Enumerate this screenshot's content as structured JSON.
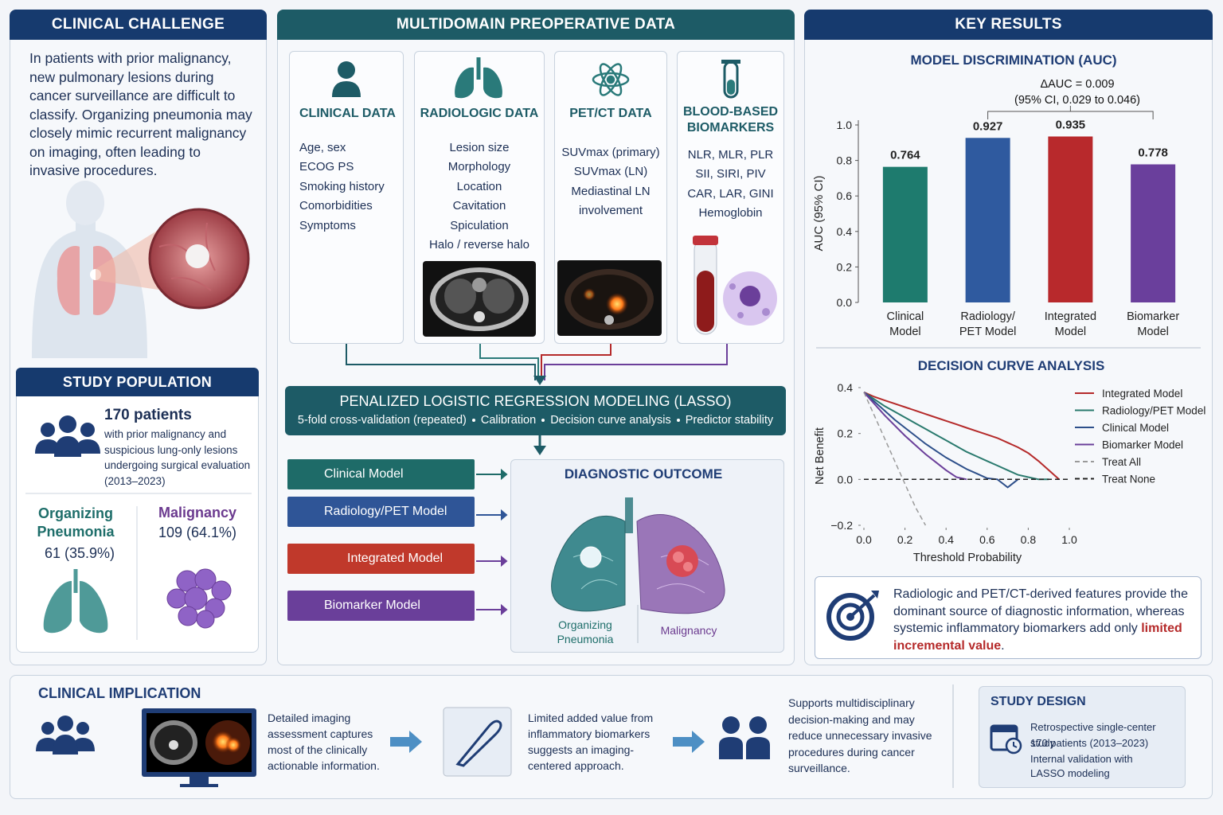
{
  "clinical_challenge": {
    "title": "CLINICAL CHALLENGE",
    "text": "In patients with prior malignancy, new pulmonary lesions during cancer surveillance are difficult to classify. Organizing pneumonia may closely mimic recurrent malignancy on imaging, often leading to invasive procedures."
  },
  "study_population": {
    "title": "STUDY POPULATION",
    "count": "170 patients",
    "description": "with prior malignancy and suspicious lung-only lesions undergoing surgical evaluation (2013–2023)",
    "groups": [
      {
        "name": "Organizing Pneumonia",
        "stat": "61 (35.9%)"
      },
      {
        "name": "Malignancy",
        "stat": "109 (64.1%)"
      }
    ]
  },
  "preoperative_data": {
    "title": "MULTIDOMAIN PREOPERATIVE DATA",
    "domains": [
      {
        "title": "CLINICAL DATA",
        "items": [
          "Age, sex",
          "ECOG PS",
          "Smoking history",
          "Comorbidities",
          "Symptoms"
        ]
      },
      {
        "title": "RADIOLOGIC DATA",
        "items": [
          "Lesion size",
          "Morphology",
          "Location",
          "Cavitation",
          "Spiculation",
          "Halo / reverse halo"
        ]
      },
      {
        "title": "PET/CT DATA",
        "items": [
          "SUVmax (primary)",
          "SUVmax (LN)",
          "Mediastinal LN involvement"
        ]
      },
      {
        "title": "BLOOD-BASED BIOMARKERS",
        "items": [
          "NLR, MLR, PLR",
          "SII, SIRI, PIV",
          "CAR, LAR, GINI",
          "Hemoglobin"
        ]
      }
    ]
  },
  "modeling": {
    "title": "PENALIZED LOGISTIC REGRESSION MODELING (LASSO)",
    "steps": [
      "5-fold cross-validation (repeated)",
      "Calibration",
      "Decision curve analysis",
      "Predictor stability"
    ]
  },
  "models": [
    "Clinical Model",
    "Radiology/PET Model",
    "Integrated Model",
    "Biomarker Model"
  ],
  "diagnostic_outcome": {
    "title": "DIAGNOSTIC OUTCOME",
    "labels": [
      "Organizing Pneumonia",
      "Malignancy"
    ]
  },
  "key_results": {
    "title": "KEY RESULTS",
    "summary": {
      "text": "Radiologic and PET/CT-derived features provide the dominant source of diagnostic information, whereas systemic inflammatory biomarkers add only ",
      "highlight": "limited incremental value",
      "end": "."
    }
  },
  "chart_data": [
    {
      "type": "bar",
      "title": "MODEL DISCRIMINATION (AUC)",
      "y_label": "AUC (95% CI)",
      "annotations": [
        "ΔAUC = 0.009",
        "(95% CI, 0.029 to 0.046)"
      ],
      "categories": [
        [
          "Clinical",
          "Model"
        ],
        [
          "Radiology/",
          "PET Model"
        ],
        [
          "Integrated",
          "Model"
        ],
        [
          "Biomarker",
          "Model"
        ]
      ],
      "values": [
        0.764,
        0.927,
        0.935,
        0.778
      ],
      "colors": [
        "#1e7b6e",
        "#2f5a9f",
        "#b8292c",
        "#6a3f9c"
      ],
      "ylim": [
        0,
        1
      ],
      "yticks": [
        {
          "value": 0,
          "label": "0.0"
        },
        0.2,
        0.4,
        0.6,
        0.8,
        {
          "value": 1,
          "label": "1.0"
        }
      ]
    },
    {
      "type": "line",
      "title": "DECISION CURVE ANALYSIS",
      "x_label": "Threshold Probability",
      "y_label": "Net Benefit",
      "x": [
        0,
        0.05,
        0.1,
        0.15,
        0.2,
        0.25,
        0.3,
        0.35,
        0.4,
        0.45,
        0.5,
        0.55,
        0.6,
        0.65,
        0.7,
        0.75,
        0.8,
        0.85,
        0.9,
        0.95,
        1
      ],
      "xlim": [
        0,
        1
      ],
      "xticks": [
        {
          "value": 0,
          "label": "0.0"
        },
        0.2,
        0.4,
        0.6,
        0.8,
        {
          "value": 1,
          "label": "1.0"
        }
      ],
      "ylim": [
        -0.2,
        0.4
      ],
      "yticks": [
        {
          "value": -0.2,
          "label": "−0.2"
        },
        {
          "value": 0,
          "label": "0.0"
        },
        0.2,
        0.4
      ],
      "series": [
        {
          "name": "Integrated Model",
          "color": "#b52a2a",
          "values": [
            0.38,
            0.36,
            0.345,
            0.33,
            0.315,
            0.3,
            0.285,
            0.27,
            0.255,
            0.24,
            0.225,
            0.21,
            0.195,
            0.18,
            0.16,
            0.14,
            0.115,
            0.08,
            0.04,
            0,
            null
          ]
        },
        {
          "name": "Radiology/PET Model",
          "color": "#2a7a6e",
          "values": [
            0.38,
            0.35,
            0.32,
            0.295,
            0.27,
            0.245,
            0.22,
            0.195,
            0.17,
            0.145,
            0.12,
            0.1,
            0.08,
            0.06,
            0.04,
            0.02,
            0.01,
            0,
            0,
            null,
            null
          ]
        },
        {
          "name": "Clinical Model",
          "color": "#2d4f8a",
          "values": [
            0.38,
            0.34,
            0.3,
            0.26,
            0.225,
            0.19,
            0.155,
            0.125,
            0.095,
            0.07,
            0.045,
            0.025,
            0.005,
            0,
            -0.035,
            0,
            null,
            null,
            null,
            null,
            null
          ]
        },
        {
          "name": "Biomarker Model",
          "color": "#6b3f9a",
          "values": [
            0.38,
            0.33,
            0.28,
            0.235,
            0.19,
            0.15,
            0.11,
            0.075,
            0.04,
            0.01,
            0,
            null,
            null,
            null,
            null,
            null,
            null,
            null,
            null,
            null,
            null
          ]
        },
        {
          "name": "Treat All",
          "color": "#9a9a9a",
          "dash": true,
          "values": [
            0.38,
            0.28,
            0.18,
            0.08,
            -0.02,
            -0.12,
            -0.2,
            null,
            null,
            null,
            null,
            null,
            null,
            null,
            null,
            null,
            null,
            null,
            null,
            null,
            null
          ]
        },
        {
          "name": "Treat None",
          "color": "#222222",
          "dash": true,
          "values": [
            0,
            0,
            0,
            0,
            0,
            0,
            0,
            0,
            0,
            0,
            0,
            0,
            0,
            0,
            0,
            0,
            0,
            0,
            0,
            0,
            0
          ]
        }
      ]
    }
  ],
  "clinical_implication": {
    "title": "CLINICAL IMPLICATION",
    "points": [
      "Detailed imaging assessment captures most of the clinically actionable information.",
      "Limited added value from inflammatory biomarkers suggests an imaging-centered approach.",
      "Supports multidisciplinary decision-making and may reduce unnecessary invasive procedures during cancer surveillance."
    ]
  },
  "study_design": {
    "title": "STUDY DESIGN",
    "lines": [
      "Retrospective single-center study",
      "170 patients (2013–2023)",
      "Internal validation with LASSO modeling"
    ]
  }
}
